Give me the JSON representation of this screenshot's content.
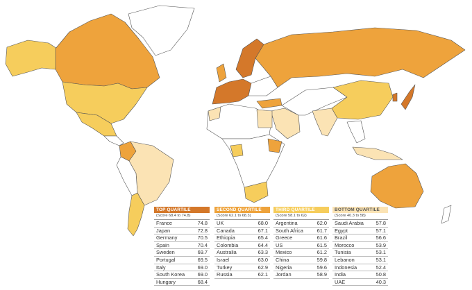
{
  "quartiles": [
    {
      "title": "TOP QUARTILE",
      "range": "(Score 68.4 to 74.8)",
      "color": "#d4782a",
      "rows": [
        [
          "France",
          "74.8"
        ],
        [
          "Japan",
          "72.8"
        ],
        [
          "Germany",
          "70.5"
        ],
        [
          "Spain",
          "70.4"
        ],
        [
          "Sweden",
          "69.7"
        ],
        [
          "Portugal",
          "69.5"
        ],
        [
          "Italy",
          "69.0"
        ],
        [
          "South Korea",
          "69.0"
        ],
        [
          "Hungary",
          "68.4"
        ]
      ]
    },
    {
      "title": "SECOND QUARTILE",
      "range": "(Score 62.1 to 68.3)",
      "color": "#eea33c",
      "rows": [
        [
          "UK",
          "68.0"
        ],
        [
          "Canada",
          "67.1"
        ],
        [
          "Ethiopia",
          "65.4"
        ],
        [
          "Colombia",
          "64.4"
        ],
        [
          "Australia",
          "63.3"
        ],
        [
          "Israel",
          "63.0"
        ],
        [
          "Turkey",
          "62.9"
        ],
        [
          "Russia",
          "62.1"
        ]
      ]
    },
    {
      "title": "THIRD QUARTILE",
      "range": "(Score 58.1 to 62)",
      "color": "#f6cd5c",
      "rows": [
        [
          "Argentina",
          "62.0"
        ],
        [
          "South Africa",
          "61.7"
        ],
        [
          "Greece",
          "61.6"
        ],
        [
          "US",
          "61.5"
        ],
        [
          "Mexico",
          "61.2"
        ],
        [
          "China",
          "59.8"
        ],
        [
          "Nigeria",
          "59.6"
        ],
        [
          "Jordan",
          "58.9"
        ]
      ]
    },
    {
      "title": "BOTTOM QUARTILE",
      "range": "(Score 40.3 to 58)",
      "color": "#fbe3b4",
      "rows": [
        [
          "Saudi Arabia",
          "57.8"
        ],
        [
          "Egypt",
          "57.1"
        ],
        [
          "Brazil",
          "56.6"
        ],
        [
          "Morocco",
          "53.9"
        ],
        [
          "Tunisia",
          "53.1"
        ],
        [
          "Lebanon",
          "53.1"
        ],
        [
          "Indonesia",
          "52.4"
        ],
        [
          "India",
          "50.8"
        ],
        [
          "UAE",
          "40.3"
        ]
      ]
    }
  ]
}
